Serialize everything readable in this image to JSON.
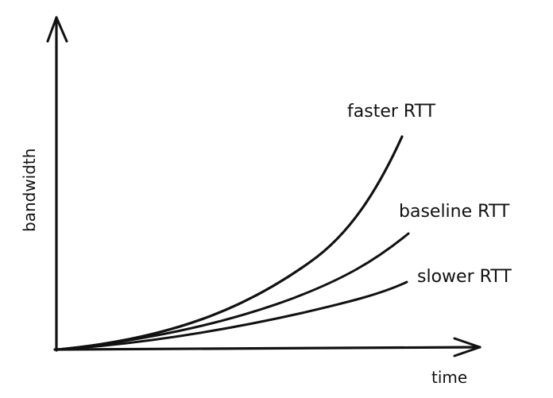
{
  "diagram": {
    "axes": {
      "x_label": "time",
      "y_label": "bandwidth"
    },
    "curves": [
      {
        "key": "faster",
        "label": "faster RTT"
      },
      {
        "key": "baseline",
        "label": "baseline RTT"
      },
      {
        "key": "slower",
        "label": "slower RTT"
      }
    ],
    "colors": {
      "ink": "#111111",
      "background": "#ffffff"
    }
  }
}
